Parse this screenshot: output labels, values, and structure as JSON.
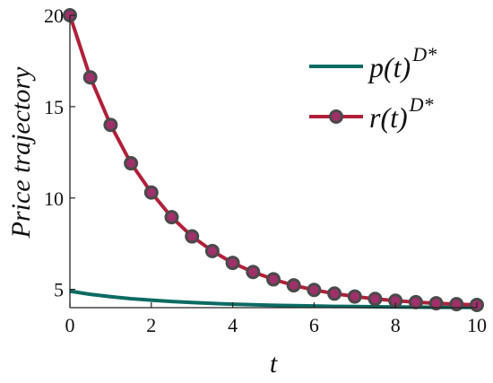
{
  "chart_data": {
    "type": "line",
    "xlabel": "t",
    "ylabel": "Price trajectory",
    "xlim": [
      0,
      10
    ],
    "ylim": [
      4,
      20
    ],
    "xticks": [
      0,
      2,
      4,
      6,
      8,
      10
    ],
    "yticks": [
      5,
      10,
      15,
      20
    ],
    "x": [
      0,
      0.5,
      1,
      1.5,
      2,
      2.5,
      3,
      3.5,
      4,
      4.5,
      5,
      5.5,
      6,
      6.5,
      7,
      7.5,
      8,
      8.5,
      9,
      9.5,
      10
    ],
    "series": [
      {
        "name": "p(t)",
        "name_sup": "D*",
        "color": "#0b6b63",
        "marker": "none",
        "values": [
          4.9,
          4.73,
          4.6,
          4.49,
          4.41,
          4.34,
          4.28,
          4.23,
          4.19,
          4.16,
          4.13,
          4.11,
          4.09,
          4.07,
          4.06,
          4.05,
          4.04,
          4.03,
          4.02,
          4.02,
          4.01
        ]
      },
      {
        "name": "r(t)",
        "name_sup": "D*",
        "color": "#b0203a",
        "marker": "circle",
        "marker_edge": "#4a4a4a",
        "marker_face": "#a0306a",
        "values": [
          20,
          16.6,
          14.0,
          11.9,
          10.3,
          8.95,
          7.9,
          7.1,
          6.45,
          5.95,
          5.55,
          5.22,
          4.97,
          4.77,
          4.61,
          4.48,
          4.38,
          4.3,
          4.24,
          4.19,
          4.15
        ]
      }
    ],
    "legend_position": "top-right",
    "grid": false
  }
}
